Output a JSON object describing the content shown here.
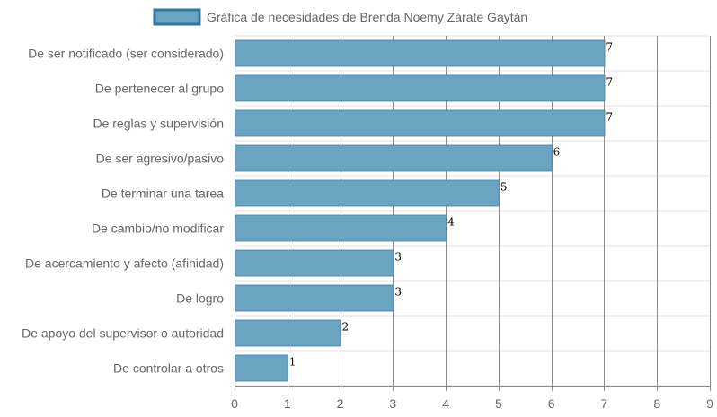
{
  "chart_data": {
    "type": "bar",
    "orientation": "horizontal",
    "categories": [
      "De ser notificado (ser considerado)",
      "De pertenecer al grupo",
      "De reglas y supervisión",
      "De ser agresivo/pasivo",
      "De terminar una tarea",
      "De cambio/no modificar",
      "De acercamiento y afecto (afinidad)",
      "De logro",
      "De apoyo del supervisor o autoridad",
      "De controlar a otros"
    ],
    "series": [
      {
        "name": "Gráfica de necesidades de Brenda Noemy Zárate Gaytán",
        "values": [
          7,
          7,
          7,
          6,
          5,
          4,
          3,
          3,
          2,
          1
        ]
      }
    ],
    "xlim": [
      0,
      9
    ],
    "x_ticks": [
      "0",
      "1",
      "2",
      "3",
      "4",
      "5",
      "6",
      "7",
      "8",
      "9"
    ],
    "grid": true,
    "legend_position": "top",
    "colors": {
      "bar_fill": "#6ba4c3",
      "bar_stroke": "#4e88a8",
      "legend_fill": "#6ba4c3",
      "legend_stroke": "#2f76a2",
      "grid_vertical": "#8c8c8c",
      "grid_horizontal": "#e1e1e1",
      "label": "#666666"
    }
  }
}
